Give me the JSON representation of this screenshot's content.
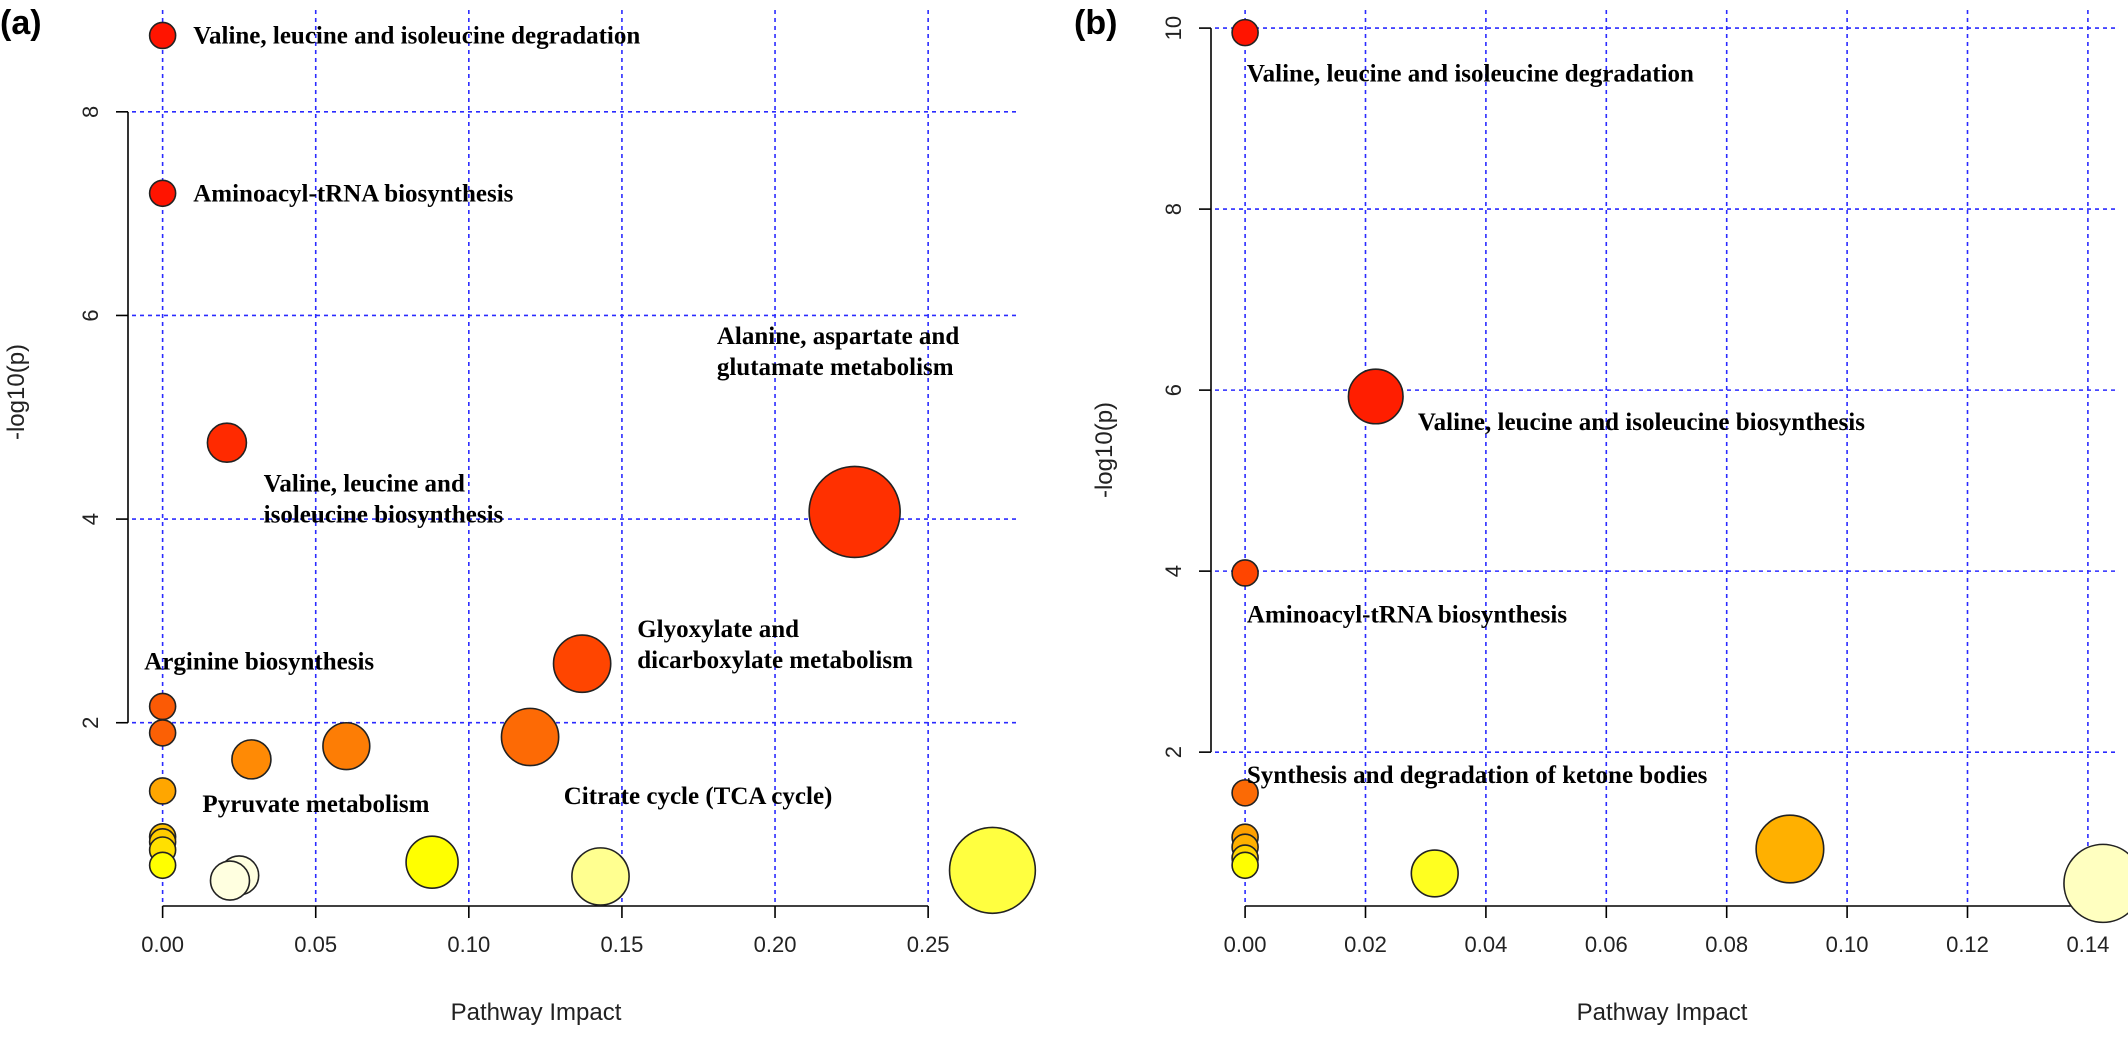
{
  "chart_data": [
    {
      "panel": "(a)",
      "type": "scatter",
      "xlabel": "Pathway Impact",
      "ylabel": "-log10(p)",
      "xlim": [
        -0.01,
        0.28
      ],
      "ylim": [
        0.2,
        9.0
      ],
      "x_ticks": [
        "0.00",
        "0.05",
        "0.10",
        "0.15",
        "0.20",
        "0.25"
      ],
      "x_tick_values": [
        0,
        0.05,
        0.1,
        0.15,
        0.2,
        0.25
      ],
      "y_ticks": [
        "2",
        "4",
        "6",
        "8"
      ],
      "y_tick_values": [
        2,
        4,
        6,
        8
      ],
      "grid": true,
      "points": [
        {
          "x": 0.0,
          "y": 8.75,
          "size": 1,
          "color": "#ff1400"
        },
        {
          "x": 0.0,
          "y": 7.2,
          "size": 1,
          "color": "#ff1400"
        },
        {
          "x": 0.021,
          "y": 4.75,
          "size": 1.5,
          "color": "#ff2a00"
        },
        {
          "x": 0.226,
          "y": 4.07,
          "size": 3.5,
          "color": "#ff3000"
        },
        {
          "x": 0.137,
          "y": 2.58,
          "size": 2.2,
          "color": "#ff4500"
        },
        {
          "x": 0.0,
          "y": 2.16,
          "size": 1,
          "color": "#fb5a05"
        },
        {
          "x": 0.0,
          "y": 1.9,
          "size": 1,
          "color": "#fb6005"
        },
        {
          "x": 0.12,
          "y": 1.86,
          "size": 2.2,
          "color": "#fd6a05"
        },
        {
          "x": 0.06,
          "y": 1.77,
          "size": 1.8,
          "color": "#fd7d05"
        },
        {
          "x": 0.029,
          "y": 1.64,
          "size": 1.5,
          "color": "#ff8a05"
        },
        {
          "x": 0.0,
          "y": 1.33,
          "size": 1,
          "color": "#ffa600"
        },
        {
          "x": 0.0,
          "y": 0.88,
          "size": 1,
          "color": "#ffc000"
        },
        {
          "x": 0.0,
          "y": 0.83,
          "size": 1,
          "color": "#ffcc00"
        },
        {
          "x": 0.0,
          "y": 0.75,
          "size": 1,
          "color": "#ffe000"
        },
        {
          "x": 0.0,
          "y": 0.6,
          "size": 1,
          "color": "#ffff00"
        },
        {
          "x": 0.088,
          "y": 0.63,
          "size": 2.0,
          "color": "#ffff00"
        },
        {
          "x": 0.271,
          "y": 0.55,
          "size": 3.3,
          "color": "#ffff40"
        },
        {
          "x": 0.025,
          "y": 0.5,
          "size": 1.5,
          "color": "#ffffe0"
        },
        {
          "x": 0.022,
          "y": 0.45,
          "size": 1.5,
          "color": "#ffffe0"
        },
        {
          "x": 0.143,
          "y": 0.49,
          "size": 2.2,
          "color": "#ffff90"
        }
      ],
      "annotations": [
        {
          "lines": [
            "Valine, leucine and isoleucine degradation"
          ],
          "x": 0.01,
          "y": 8.75
        },
        {
          "lines": [
            "Aminoacyl-tRNA biosynthesis"
          ],
          "x": 0.01,
          "y": 7.2
        },
        {
          "lines": [
            "Valine, leucine and",
            "isoleucine biosynthesis"
          ],
          "x": 0.033,
          "y": 4.35
        },
        {
          "lines": [
            "Alanine, aspartate and",
            "glutamate metabolism"
          ],
          "x": 0.181,
          "y": 5.8
        },
        {
          "lines": [
            "Glyoxylate and",
            "dicarboxylate metabolism"
          ],
          "x": 0.155,
          "y": 2.92
        },
        {
          "lines": [
            "Arginine biosynthesis"
          ],
          "x": -0.006,
          "y": 2.6
        },
        {
          "lines": [
            "Pyruvate metabolism"
          ],
          "x": 0.013,
          "y": 1.2
        },
        {
          "lines": [
            "Citrate cycle (TCA cycle)"
          ],
          "x": 0.131,
          "y": 1.28
        }
      ]
    },
    {
      "panel": "(b)",
      "type": "scatter",
      "xlabel": "Pathway Impact",
      "ylabel": "-log10(p)",
      "xlim": [
        -0.005,
        0.145
      ],
      "ylim": [
        0.3,
        10.2
      ],
      "x_ticks": [
        "0.00",
        "0.02",
        "0.04",
        "0.06",
        "0.08",
        "0.10",
        "0.12",
        "0.14"
      ],
      "x_tick_values": [
        0,
        0.02,
        0.04,
        0.06,
        0.08,
        0.1,
        0.12,
        0.14
      ],
      "y_ticks": [
        "2",
        "4",
        "6",
        "8",
        "10"
      ],
      "y_tick_values": [
        2,
        4,
        6,
        8,
        10
      ],
      "grid": true,
      "points": [
        {
          "x": 0.0,
          "y": 9.95,
          "size": 1,
          "color": "#ff1400"
        },
        {
          "x": 0.0217,
          "y": 5.93,
          "size": 2.1,
          "color": "#ff1e00"
        },
        {
          "x": 0.0,
          "y": 3.98,
          "size": 1,
          "color": "#ff4500"
        },
        {
          "x": 0.0,
          "y": 1.55,
          "size": 1,
          "color": "#fb6a05"
        },
        {
          "x": 0.0,
          "y": 1.06,
          "size": 1,
          "color": "#ffa000"
        },
        {
          "x": 0.0,
          "y": 0.95,
          "size": 1,
          "color": "#ffb000"
        },
        {
          "x": 0.0,
          "y": 0.83,
          "size": 1,
          "color": "#ffd400"
        },
        {
          "x": 0.0,
          "y": 0.75,
          "size": 1,
          "color": "#ffff00"
        },
        {
          "x": 0.0905,
          "y": 0.93,
          "size": 2.6,
          "color": "#ffb000"
        },
        {
          "x": 0.0315,
          "y": 0.66,
          "size": 1.8,
          "color": "#ffff20"
        },
        {
          "x": 0.1425,
          "y": 0.55,
          "size": 3.0,
          "color": "#ffffc0"
        }
      ],
      "annotations": [
        {
          "lines": [
            "Valine, leucine and isoleucine degradation"
          ],
          "x": 0.0003,
          "y": 9.5
        },
        {
          "lines": [
            "Valine, leucine and isoleucine biosynthesis"
          ],
          "x": 0.0287,
          "y": 5.65
        },
        {
          "lines": [
            "Aminoacyl-tRNA biosynthesis"
          ],
          "x": 0.0003,
          "y": 3.52
        },
        {
          "lines": [
            "Synthesis and degradation of ketone bodies"
          ],
          "x": 0.0003,
          "y": 1.75
        }
      ]
    }
  ]
}
